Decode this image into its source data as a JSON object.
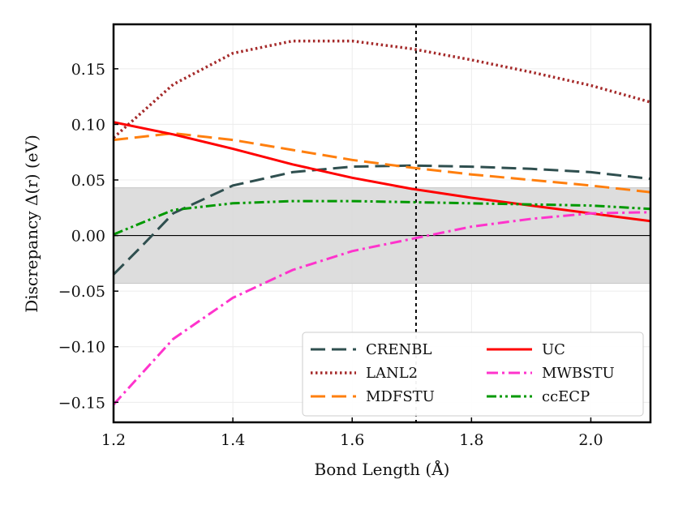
{
  "chart_data": {
    "type": "line",
    "title": "",
    "xlabel": "Bond Length (Å)",
    "ylabel": "Discrepancy Δ(r) (eV)",
    "xlim": [
      1.2,
      2.1
    ],
    "ylim": [
      -0.168,
      0.19
    ],
    "xticks": [
      1.2,
      1.4,
      1.6,
      1.8,
      2.0
    ],
    "xtick_labels": [
      "1.2",
      "1.4",
      "1.6",
      "1.8",
      "2.0"
    ],
    "yticks": [
      -0.15,
      -0.1,
      -0.05,
      0.0,
      0.05,
      0.1,
      0.15
    ],
    "ytick_labels": [
      "−0.15",
      "−0.10",
      "−0.05",
      "0.00",
      "0.05",
      "0.10",
      "0.15"
    ],
    "grid": true,
    "reference_line": {
      "y": 0.0
    },
    "shaded_band": {
      "ymin": -0.043,
      "ymax": 0.043
    },
    "vertical_line": {
      "x": 1.707
    },
    "legend_position": "lower-right",
    "series": [
      {
        "name": "CRENBL",
        "color": "#2f4f4f",
        "style": "dashed",
        "x": [
          1.2,
          1.25,
          1.3,
          1.4,
          1.5,
          1.6,
          1.7,
          1.8,
          1.9,
          2.0,
          2.1
        ],
        "y": [
          -0.035,
          -0.008,
          0.02,
          0.045,
          0.057,
          0.062,
          0.063,
          0.062,
          0.06,
          0.057,
          0.051
        ]
      },
      {
        "name": "LANL2",
        "color": "#a52a2a",
        "style": "dotted",
        "x": [
          1.2,
          1.3,
          1.4,
          1.5,
          1.6,
          1.7,
          1.8,
          1.9,
          2.0,
          2.1
        ],
        "y": [
          0.088,
          0.136,
          0.164,
          0.175,
          0.175,
          0.168,
          0.158,
          0.147,
          0.135,
          0.12
        ]
      },
      {
        "name": "MDFSTU",
        "color": "#ff7f0e",
        "style": "dashed",
        "x": [
          1.2,
          1.3,
          1.4,
          1.5,
          1.6,
          1.7,
          1.8,
          1.9,
          2.0,
          2.1
        ],
        "y": [
          0.086,
          0.092,
          0.086,
          0.077,
          0.068,
          0.061,
          0.055,
          0.05,
          0.045,
          0.039
        ]
      },
      {
        "name": "UC",
        "color": "#ff0000",
        "style": "solid",
        "x": [
          1.2,
          1.3,
          1.4,
          1.5,
          1.6,
          1.7,
          1.8,
          1.9,
          2.0,
          2.1
        ],
        "y": [
          0.102,
          0.091,
          0.078,
          0.064,
          0.052,
          0.042,
          0.034,
          0.027,
          0.02,
          0.013
        ]
      },
      {
        "name": "MWBSTU",
        "color": "#ff33cc",
        "style": "dashdot",
        "x": [
          1.2,
          1.3,
          1.4,
          1.5,
          1.6,
          1.7,
          1.8,
          1.9,
          2.0,
          2.1
        ],
        "y": [
          -0.152,
          -0.093,
          -0.056,
          -0.031,
          -0.014,
          -0.003,
          0.008,
          0.015,
          0.02,
          0.021
        ]
      },
      {
        "name": "ccECP",
        "color": "#009900",
        "style": "dashdotdot",
        "x": [
          1.2,
          1.3,
          1.4,
          1.5,
          1.6,
          1.7,
          1.8,
          1.9,
          2.0,
          2.1
        ],
        "y": [
          0.001,
          0.023,
          0.029,
          0.031,
          0.031,
          0.03,
          0.029,
          0.028,
          0.027,
          0.024
        ]
      }
    ]
  }
}
